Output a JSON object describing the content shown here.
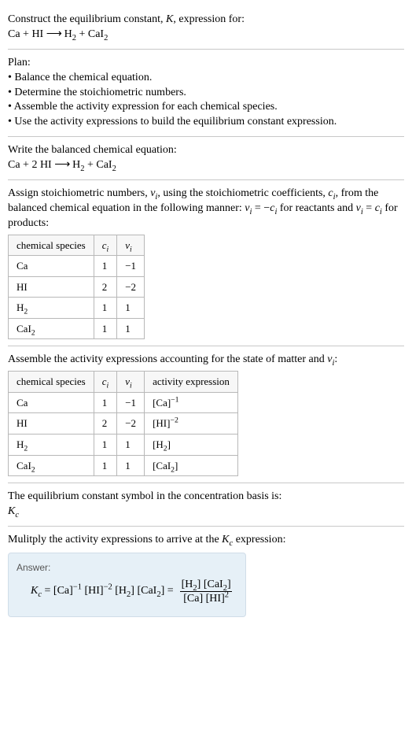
{
  "prompt": {
    "line1_a": "Construct the equilibrium constant, ",
    "line1_b": ", expression for:",
    "eq_lhs_ca": "Ca + HI ",
    "arrow": "⟶",
    "eq_rhs_before_sub": " H",
    "eq_sub2": "2",
    "eq_rhs_plus": " + CaI"
  },
  "plan": {
    "title": "Plan:",
    "b1": "• Balance the chemical equation.",
    "b2": "• Determine the stoichiometric numbers.",
    "b3": "• Assemble the activity expression for each chemical species.",
    "b4": "• Use the activity expressions to build the equilibrium constant expression."
  },
  "balanced": {
    "title": "Write the balanced chemical equation:",
    "lhs": "Ca + 2 HI ",
    "arrow": "⟶",
    "rhs_h": " H",
    "sub2": "2",
    "rhs_plus": " + CaI"
  },
  "stoich_text": {
    "p1a": "Assign stoichiometric numbers, ",
    "nu_i": "ν",
    "p1b": ", using the stoichiometric coefficients, ",
    "c_i": "c",
    "p1c": ", from the balanced chemical equation in the following manner: ",
    "rel_react": " = −",
    "p1d": " for reactants and ",
    "rel_prod": " = ",
    "p1e": " for products:"
  },
  "table1": {
    "h1": "chemical species",
    "h2": "c",
    "h3": "ν",
    "rows": [
      {
        "sp_a": "Ca",
        "sp_sub": "",
        "c": "1",
        "v": "−1"
      },
      {
        "sp_a": "HI",
        "sp_sub": "",
        "c": "2",
        "v": "−2"
      },
      {
        "sp_a": "H",
        "sp_sub": "2",
        "c": "1",
        "v": "1"
      },
      {
        "sp_a": "CaI",
        "sp_sub": "2",
        "c": "1",
        "v": "1"
      }
    ]
  },
  "activity_text": {
    "p1": "Assemble the activity expressions accounting for the state of matter and ",
    "nu": "ν",
    "p2": ":"
  },
  "table2": {
    "h1": "chemical species",
    "h2": "c",
    "h3": "ν",
    "h4": "activity expression",
    "rows": [
      {
        "sp_a": "Ca",
        "sp_sub": "",
        "c": "1",
        "v": "−1",
        "act_a": "[Ca]",
        "act_sup": "−1",
        "act_sub": ""
      },
      {
        "sp_a": "HI",
        "sp_sub": "",
        "c": "2",
        "v": "−2",
        "act_a": "[HI]",
        "act_sup": "−2",
        "act_sub": ""
      },
      {
        "sp_a": "H",
        "sp_sub": "2",
        "c": "1",
        "v": "1",
        "act_a": "[H",
        "act_sup": "",
        "act_sub": "2",
        "act_b": "]"
      },
      {
        "sp_a": "CaI",
        "sp_sub": "2",
        "c": "1",
        "v": "1",
        "act_a": "[CaI",
        "act_sup": "",
        "act_sub": "2",
        "act_b": "]"
      }
    ]
  },
  "symbol": {
    "p1": "The equilibrium constant symbol in the concentration basis is:",
    "K": "K",
    "Ksub": "c"
  },
  "multiply": {
    "p1a": "Mulitply the activity expressions to arrive at the ",
    "K": "K",
    "Ksub": "c",
    "p1b": " expression:"
  },
  "answer": {
    "label": "Answer:",
    "K": "K",
    "Ksub": "c",
    "eq": " = [Ca]",
    "sup1": "−1",
    "mid1": " [HI]",
    "sup2": "−2",
    "mid2": " [H",
    "sub2a": "2",
    "mid3": "] [CaI",
    "sub2b": "2",
    "mid4": "] = ",
    "num_a": "[H",
    "num_sub1": "2",
    "num_b": "] [CaI",
    "num_sub2": "2",
    "num_c": "]",
    "den_a": "[Ca] [HI]",
    "den_sup": "2"
  }
}
